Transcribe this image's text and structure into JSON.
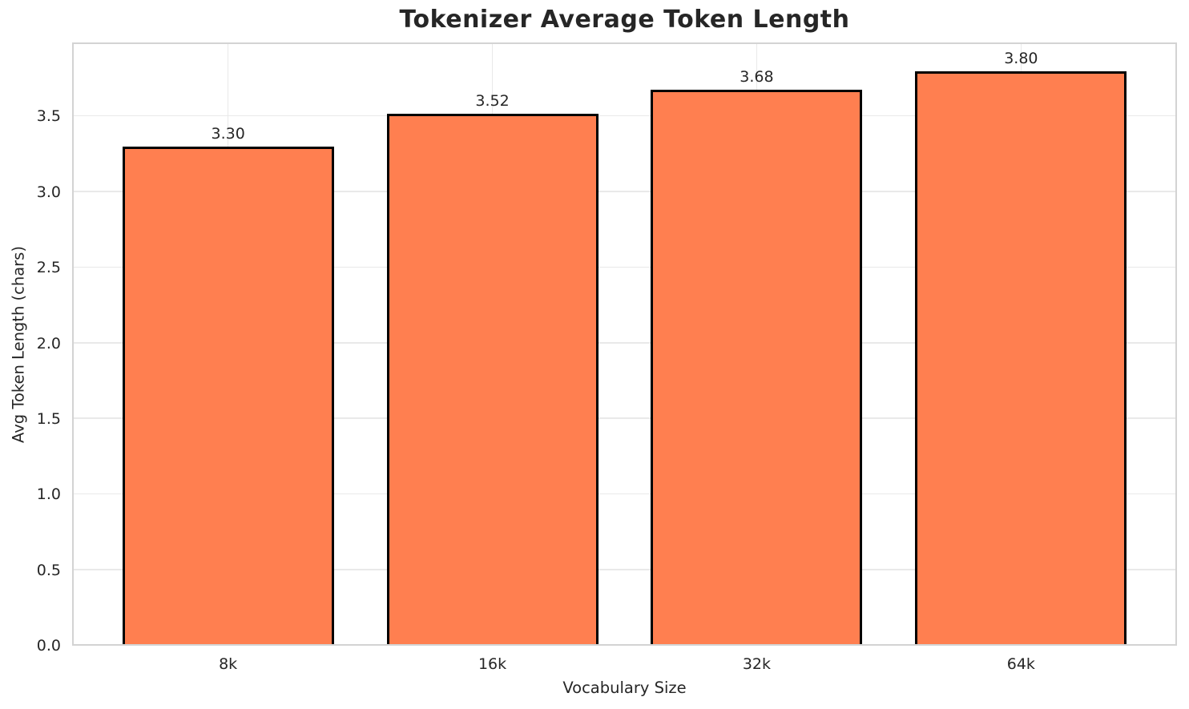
{
  "chart_data": {
    "type": "bar",
    "title": "Tokenizer Average Token Length",
    "xlabel": "Vocabulary Size",
    "ylabel": "Avg Token Length (chars)",
    "categories": [
      "8k",
      "16k",
      "32k",
      "64k"
    ],
    "values": [
      3.3,
      3.52,
      3.68,
      3.8
    ],
    "value_labels": [
      "3.30",
      "3.52",
      "3.68",
      "3.80"
    ],
    "yticks": [
      0.0,
      0.5,
      1.0,
      1.5,
      2.0,
      2.5,
      3.0,
      3.5
    ],
    "ytick_labels": [
      "0.0",
      "0.5",
      "1.0",
      "1.5",
      "2.0",
      "2.5",
      "3.0",
      "3.5"
    ],
    "ylim": [
      0,
      3.99
    ],
    "grid": true,
    "legend_position": "none",
    "colors": {
      "bar_fill": "#FF7F50",
      "bar_edge": "#000000",
      "grid_line": "#e9e9e9",
      "spine": "#d3d3d3",
      "text": "#262626",
      "background": "#ffffff"
    }
  }
}
